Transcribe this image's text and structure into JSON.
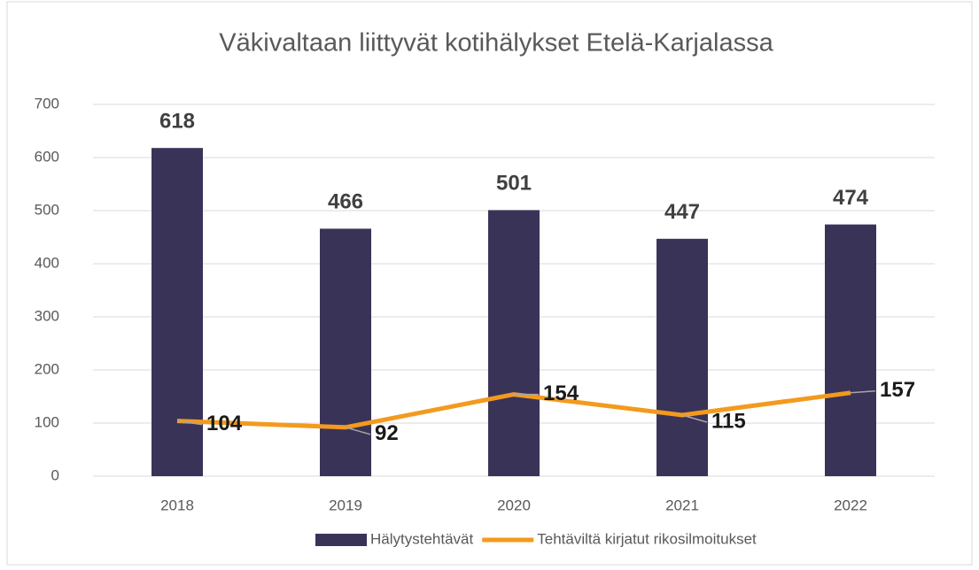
{
  "chart_data": {
    "type": "bar",
    "title": "Väkivaltaan liittyvät kotihälykset Etelä-Karjalassa",
    "categories": [
      "2018",
      "2019",
      "2020",
      "2021",
      "2022"
    ],
    "series": [
      {
        "name": "Hälytystehtävät",
        "type": "bar",
        "color": "#3a3358",
        "values": [
          618,
          466,
          501,
          447,
          474
        ]
      },
      {
        "name": "Tehtäviltä kirjatut rikosilmoitukset",
        "type": "line",
        "color": "#f39a1e",
        "values": [
          104,
          92,
          154,
          115,
          157
        ]
      }
    ],
    "ylim": [
      0,
      700
    ],
    "yticks": [
      0,
      100,
      200,
      300,
      400,
      500,
      600,
      700
    ],
    "grid": true,
    "legend": "bottom"
  }
}
